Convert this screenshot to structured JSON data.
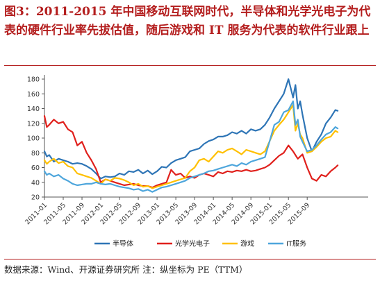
{
  "title": "图3：2011-2015 年中国移动互联网时代，半导体和光学光电子为代表的硬件行业率先拔估值，随后游戏和 IT 服务为代表的软件行业跟上",
  "source": "数据来源：Wind、开源证券研究所 注：纵坐标为 PE（TTM）",
  "chart_data": {
    "type": "line",
    "ylim": [
      20,
      180
    ],
    "yticks": [
      20,
      40,
      60,
      80,
      100,
      120,
      140,
      160,
      180
    ],
    "xlim": [
      0,
      69
    ],
    "xticks": [
      {
        "x": 0,
        "label": "2011-01"
      },
      {
        "x": 4,
        "label": "2011-05"
      },
      {
        "x": 8,
        "label": "2011-09"
      },
      {
        "x": 12,
        "label": "2012-01"
      },
      {
        "x": 16,
        "label": "2012-05"
      },
      {
        "x": 20,
        "label": "2012-09"
      },
      {
        "x": 24,
        "label": "2013-01"
      },
      {
        "x": 28,
        "label": "2013-05"
      },
      {
        "x": 32,
        "label": "2013-09"
      },
      {
        "x": 36,
        "label": "2014-01"
      },
      {
        "x": 40,
        "label": "2014-05"
      },
      {
        "x": 44,
        "label": "2014-09"
      },
      {
        "x": 48,
        "label": "2015-01"
      },
      {
        "x": 52,
        "label": "2015-05"
      },
      {
        "x": 56,
        "label": "2015-09"
      }
    ],
    "grid": false,
    "legend_position": "bottom",
    "series": [
      {
        "name": "半导体",
        "color": "#2e75b6",
        "x": [
          0,
          0.5,
          1,
          2,
          3,
          4,
          5,
          6,
          7,
          8,
          9,
          10,
          11,
          12,
          13,
          14,
          15,
          16,
          17,
          18,
          19,
          20,
          21,
          22,
          23,
          24,
          25,
          26,
          27,
          28,
          29,
          30,
          31,
          32,
          33,
          34,
          35,
          36,
          37,
          38,
          39,
          40,
          41,
          42,
          43,
          44,
          45,
          46,
          47,
          48,
          49,
          50,
          51,
          52,
          53,
          53.5,
          54,
          54.5,
          55,
          56,
          57,
          58,
          59,
          60,
          61,
          62,
          62.5
        ],
        "y": [
          82,
          75,
          77,
          68,
          72,
          70,
          68,
          65,
          66,
          65,
          62,
          58,
          52,
          45,
          48,
          47,
          48,
          52,
          50,
          55,
          54,
          57,
          52,
          56,
          51,
          55,
          61,
          60,
          66,
          70,
          72,
          74,
          82,
          84,
          86,
          92,
          96,
          98,
          102,
          102,
          104,
          108,
          106,
          110,
          106,
          112,
          110,
          112,
          118,
          128,
          140,
          150,
          160,
          180,
          155,
          172,
          140,
          150,
          132,
          100,
          82,
          95,
          105,
          120,
          128,
          138,
          137
        ]
      },
      {
        "name": "光学光电子",
        "color": "#e0201c",
        "x": [
          0,
          0.5,
          1,
          2,
          3,
          4,
          5,
          6,
          7,
          8,
          9,
          10,
          11,
          12,
          13,
          14,
          15,
          16,
          17,
          18,
          19,
          20,
          21,
          22,
          23,
          24,
          25,
          26,
          27,
          28,
          29,
          30,
          31,
          32,
          33,
          34,
          35,
          36,
          37,
          38,
          39,
          40,
          41,
          42,
          43,
          44,
          45,
          46,
          47,
          48,
          49,
          50,
          51,
          52,
          53,
          54,
          55,
          56,
          57,
          58,
          59,
          60,
          61,
          62,
          62.5
        ],
        "y": [
          130,
          115,
          118,
          125,
          120,
          122,
          112,
          108,
          90,
          95,
          80,
          70,
          58,
          40,
          44,
          42,
          40,
          38,
          36,
          37,
          38,
          36,
          35,
          35,
          33,
          36,
          38,
          40,
          57,
          50,
          52,
          46,
          48,
          46,
          50,
          52,
          50,
          48,
          54,
          52,
          55,
          54,
          56,
          55,
          57,
          55,
          56,
          58,
          60,
          64,
          70,
          76,
          80,
          90,
          82,
          72,
          78,
          60,
          45,
          42,
          50,
          48,
          55,
          60,
          63
        ]
      },
      {
        "name": "游戏",
        "color": "#ffc000",
        "x": [
          0,
          0.5,
          1,
          2,
          3,
          4,
          5,
          6,
          7,
          8,
          9,
          10,
          11,
          12,
          13,
          14,
          15,
          16,
          17,
          18,
          19,
          20,
          21,
          22,
          23,
          24,
          25,
          26,
          27,
          28,
          29,
          30,
          31,
          32,
          33,
          34,
          35,
          36,
          37,
          38,
          39,
          40,
          41,
          42,
          43,
          44,
          45,
          46,
          47,
          48,
          49,
          50,
          51,
          52,
          53,
          53.5,
          54,
          54.5,
          55,
          56,
          57,
          58,
          59,
          60,
          61,
          62,
          62.5
        ],
        "y": [
          70,
          65,
          68,
          72,
          66,
          68,
          62,
          60,
          52,
          50,
          48,
          46,
          42,
          38,
          44,
          42,
          46,
          45,
          43,
          40,
          36,
          38,
          34,
          35,
          32,
          34,
          36,
          38,
          40,
          42,
          44,
          46,
          55,
          60,
          70,
          72,
          68,
          75,
          82,
          80,
          84,
          86,
          82,
          78,
          84,
          82,
          80,
          78,
          82,
          96,
          110,
          118,
          125,
          135,
          145,
          110,
          120,
          105,
          100,
          80,
          82,
          88,
          95,
          100,
          102,
          110,
          108
        ]
      },
      {
        "name": "IT服务",
        "color": "#4ea6dc",
        "x": [
          0,
          0.5,
          1,
          2,
          3,
          4,
          5,
          6,
          7,
          8,
          9,
          10,
          11,
          12,
          13,
          14,
          15,
          16,
          17,
          18,
          19,
          20,
          21,
          22,
          23,
          24,
          25,
          26,
          27,
          28,
          29,
          30,
          31,
          32,
          33,
          34,
          35,
          36,
          37,
          38,
          39,
          40,
          41,
          42,
          43,
          44,
          45,
          46,
          47,
          48,
          49,
          50,
          51,
          52,
          53,
          53.5,
          54,
          54.5,
          55,
          56,
          57,
          58,
          59,
          60,
          61,
          62,
          62.5
        ],
        "y": [
          55,
          50,
          52,
          48,
          50,
          45,
          42,
          38,
          36,
          37,
          38,
          38,
          40,
          38,
          37,
          38,
          36,
          34,
          33,
          32,
          30,
          31,
          28,
          30,
          27,
          30,
          33,
          34,
          36,
          38,
          40,
          42,
          46,
          48,
          50,
          52,
          55,
          56,
          58,
          60,
          62,
          64,
          62,
          66,
          64,
          68,
          70,
          72,
          74,
          96,
          118,
          122,
          135,
          138,
          150,
          118,
          125,
          102,
          95,
          82,
          84,
          90,
          98,
          105,
          108,
          115,
          113
        ]
      }
    ]
  }
}
